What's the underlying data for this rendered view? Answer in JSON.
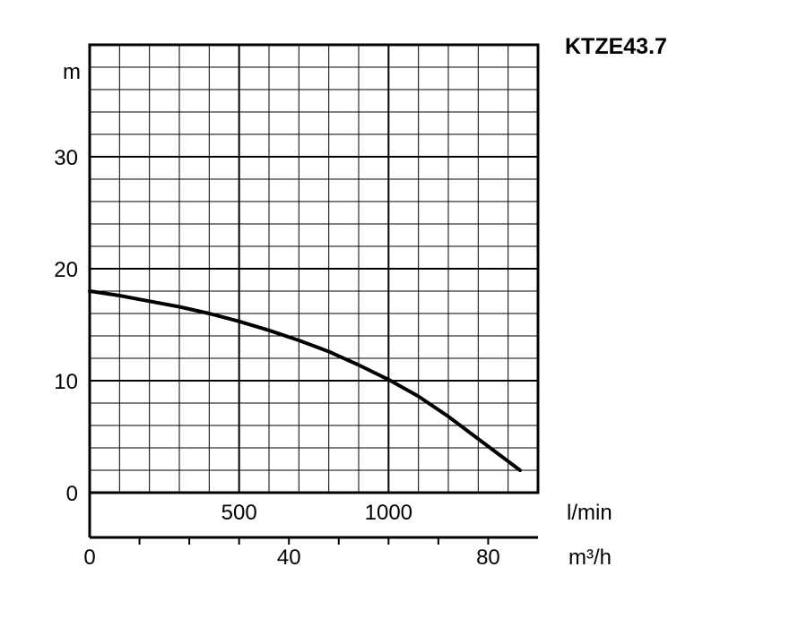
{
  "chart_data": {
    "type": "line",
    "title": "KTZE43.7",
    "ylabel": "m",
    "ylim": [
      0,
      40
    ],
    "y_ticks": [
      "0",
      "10",
      "20",
      "30"
    ],
    "xlim_lmin": [
      0,
      1500
    ],
    "x_ticks_lmin": [
      "500",
      "1000"
    ],
    "x_unit_lmin": "l/min",
    "xlim_m3h": [
      0,
      90
    ],
    "x_ticks_m3h": [
      "0",
      "40",
      "80"
    ],
    "x_unit_m3h": "m³/h",
    "grid": true,
    "series": [
      {
        "x": [
          0,
          100,
          200,
          300,
          400,
          500,
          600,
          700,
          800,
          900,
          1000,
          1100,
          1200,
          1300,
          1440
        ],
        "y": [
          18,
          17.6,
          17.1,
          16.6,
          16.0,
          15.3,
          14.5,
          13.6,
          12.6,
          11.4,
          10.1,
          8.6,
          6.8,
          4.8,
          2.0
        ]
      }
    ]
  }
}
